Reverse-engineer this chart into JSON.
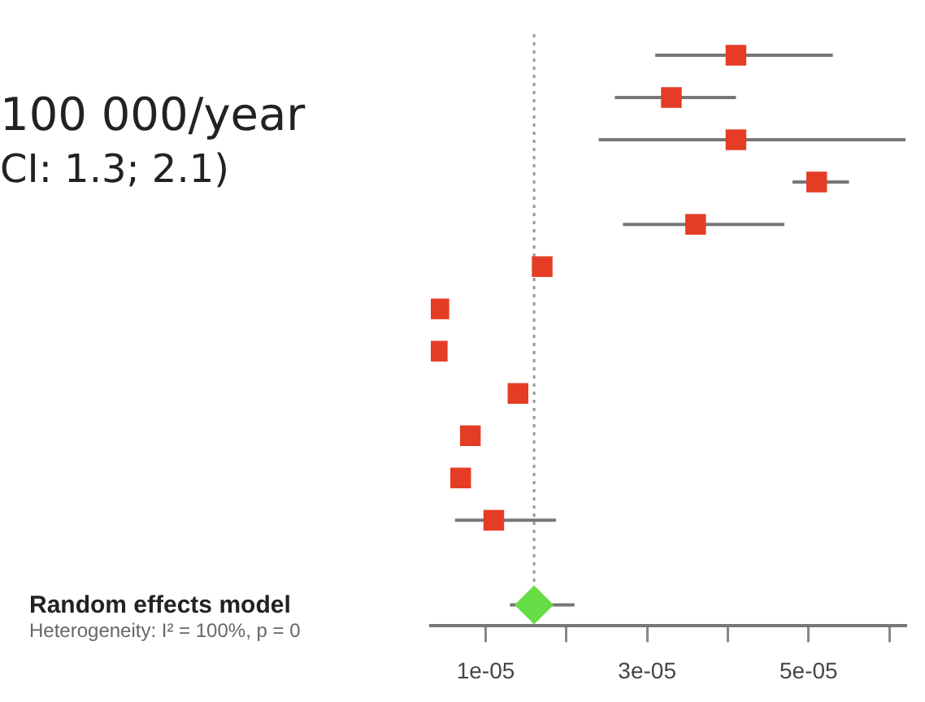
{
  "chart_data": {
    "type": "scatter",
    "orientation": "horizontal",
    "categories": [
      null,
      null,
      null,
      null,
      null,
      null,
      null,
      null,
      null,
      null,
      null,
      null,
      null,
      null
    ],
    "xlim": [
      3.2e-06,
      6.2e-05
    ],
    "xticks": [
      {
        "value": 1e-05,
        "label": "1e-05"
      },
      {
        "value": 2e-05,
        "label": null
      },
      {
        "value": 3e-05,
        "label": "3e-05"
      },
      {
        "value": 4e-05,
        "label": null
      },
      {
        "value": 5e-05,
        "label": "5e-05"
      },
      {
        "value": 6e-05,
        "label": null
      }
    ],
    "series": [
      {
        "color": "#e53d25",
        "marker": "square",
        "values": [
          4.1e-05,
          3.3e-05,
          4.1e-05,
          5.1e-05,
          3.6e-05,
          1.7e-05,
          4.2e-06,
          4e-06,
          1.4e-05,
          8.1e-06,
          6.9e-06,
          1.1e-05,
          null,
          null
        ],
        "errors": [
          [
            3.1e-05,
            5.3e-05
          ],
          [
            2.6e-05,
            4.1e-05
          ],
          [
            2.4e-05,
            6.2e-05
          ],
          [
            4.8e-05,
            5.5e-05
          ],
          [
            2.7e-05,
            4.7e-05
          ],
          null,
          null,
          null,
          null,
          null,
          null,
          [
            6.2e-06,
            1.87e-05
          ],
          null,
          null
        ]
      },
      {
        "color": "#66dd44",
        "marker": "diamond",
        "values": [
          null,
          null,
          null,
          null,
          null,
          null,
          null,
          null,
          null,
          null,
          null,
          null,
          null,
          1.6e-05
        ],
        "errors": [
          null,
          null,
          null,
          null,
          null,
          null,
          null,
          null,
          null,
          null,
          null,
          null,
          null,
          [
            1.3e-05,
            2.1e-05
          ]
        ]
      }
    ],
    "ref_lines": [
      {
        "axis": "x",
        "value": 1.6e-05,
        "color": "#999999",
        "line_style": "dotted"
      }
    ],
    "annotations": [
      "100 000/year",
      "CI: 1.3; 2.1)",
      "Random effects model",
      "Heterogeneity: I² = 100%, p = 0"
    ],
    "grid": false,
    "legend": false
  }
}
